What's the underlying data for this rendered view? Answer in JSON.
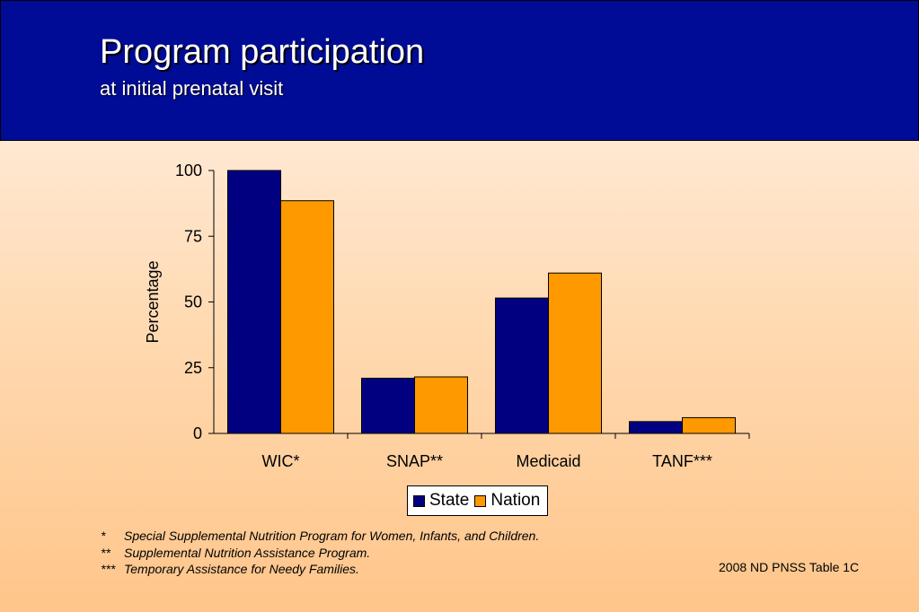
{
  "header": {
    "title": "Program participation",
    "subtitle": "at initial prenatal visit"
  },
  "chart_data": {
    "type": "bar",
    "categories": [
      "WIC*",
      "SNAP**",
      "Medicaid",
      "TANF***"
    ],
    "series": [
      {
        "name": "State",
        "values": [
          100,
          21,
          51.5,
          4.5
        ],
        "color": "#000080"
      },
      {
        "name": "Nation",
        "values": [
          88.5,
          21.5,
          61,
          6
        ],
        "color": "#ff9900"
      }
    ],
    "ylabel": "Percentage",
    "ylim": [
      0,
      100
    ],
    "yticks": [
      0,
      25,
      50,
      75,
      100
    ],
    "legend": "bottom",
    "grid": false
  },
  "footnotes": [
    {
      "mark": "*",
      "text": "Special Supplemental Nutrition Program for Women, Infants, and Children."
    },
    {
      "mark": "**",
      "text": "Supplemental Nutrition Assistance Program."
    },
    {
      "mark": "***",
      "text": "Temporary Assistance for Needy Families."
    }
  ],
  "source": "2008 ND PNSS Table 1C"
}
